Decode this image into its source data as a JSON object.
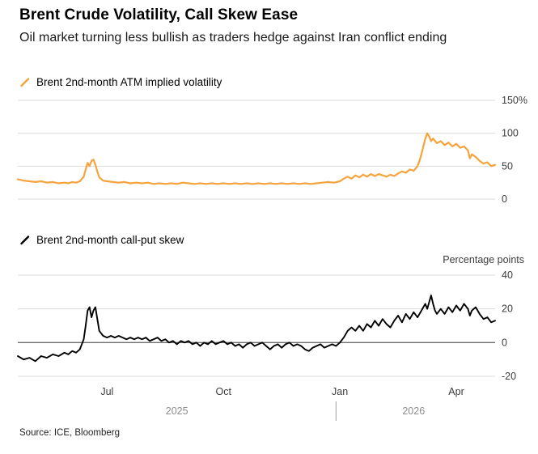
{
  "header": {
    "title": "Brent Crude Volatility, Call Skew Ease",
    "subtitle": "Oil market turning less bullish as traders hedge against Iran conflict ending"
  },
  "colors": {
    "accent": "#F5A33C",
    "ink": "#000000",
    "background": "#FFFFFF",
    "grid": "#DBDBDB",
    "zero_line": "#6E6E6E",
    "divider": "#A0A0A0",
    "tick_text": "#3C3C3C",
    "year_text": "#8C8C8C"
  },
  "x_axis": {
    "unit": "months since 2025-05-01",
    "domain": [
      -0.3,
      12.0
    ],
    "ticks": [
      {
        "label": "Jul",
        "t": 2
      },
      {
        "label": "Oct",
        "t": 5
      },
      {
        "label": "Jan",
        "t": 8
      },
      {
        "label": "Apr",
        "t": 11
      }
    ],
    "years": [
      {
        "label": "2025",
        "t": 3.8
      },
      {
        "label": "2026",
        "t": 9.9
      }
    ],
    "divider_t": 7.9
  },
  "chart_data": [
    {
      "type": "line",
      "name": "Brent 2nd-month ATM implied volatility",
      "color": "#F5A33C",
      "ylim": [
        0,
        150
      ],
      "yticks": [
        0,
        50,
        100,
        150
      ],
      "ytick_labels": [
        "0",
        "50",
        "100",
        "150%"
      ],
      "zero_dark": false,
      "points": [
        [
          -0.3,
          30
        ],
        [
          -0.15,
          28
        ],
        [
          0,
          27
        ],
        [
          0.15,
          26
        ],
        [
          0.3,
          27
        ],
        [
          0.45,
          25
        ],
        [
          0.6,
          26
        ],
        [
          0.75,
          24
        ],
        [
          0.9,
          25
        ],
        [
          1.0,
          24
        ],
        [
          1.1,
          26
        ],
        [
          1.2,
          25
        ],
        [
          1.3,
          27
        ],
        [
          1.4,
          34
        ],
        [
          1.45,
          45
        ],
        [
          1.5,
          55
        ],
        [
          1.55,
          50
        ],
        [
          1.6,
          58
        ],
        [
          1.65,
          60
        ],
        [
          1.7,
          52
        ],
        [
          1.75,
          42
        ],
        [
          1.8,
          33
        ],
        [
          1.9,
          28
        ],
        [
          2.0,
          27
        ],
        [
          2.15,
          26
        ],
        [
          2.3,
          25
        ],
        [
          2.45,
          26
        ],
        [
          2.6,
          24
        ],
        [
          2.75,
          25
        ],
        [
          2.9,
          24
        ],
        [
          3.05,
          25
        ],
        [
          3.2,
          23
        ],
        [
          3.35,
          24
        ],
        [
          3.5,
          23
        ],
        [
          3.65,
          24
        ],
        [
          3.8,
          23
        ],
        [
          3.95,
          25
        ],
        [
          4.1,
          24
        ],
        [
          4.25,
          23
        ],
        [
          4.4,
          24
        ],
        [
          4.55,
          23
        ],
        [
          4.7,
          24
        ],
        [
          4.85,
          23
        ],
        [
          5.0,
          24
        ],
        [
          5.15,
          23
        ],
        [
          5.3,
          24
        ],
        [
          5.45,
          23
        ],
        [
          5.6,
          24
        ],
        [
          5.75,
          23
        ],
        [
          5.9,
          24
        ],
        [
          6.05,
          23
        ],
        [
          6.2,
          24
        ],
        [
          6.35,
          23
        ],
        [
          6.5,
          24
        ],
        [
          6.65,
          23
        ],
        [
          6.8,
          24
        ],
        [
          6.95,
          23
        ],
        [
          7.1,
          24
        ],
        [
          7.25,
          23
        ],
        [
          7.4,
          24
        ],
        [
          7.55,
          25
        ],
        [
          7.7,
          26
        ],
        [
          7.85,
          25
        ],
        [
          8.0,
          27
        ],
        [
          8.1,
          31
        ],
        [
          8.2,
          34
        ],
        [
          8.3,
          31
        ],
        [
          8.4,
          36
        ],
        [
          8.5,
          33
        ],
        [
          8.6,
          37
        ],
        [
          8.7,
          34
        ],
        [
          8.8,
          38
        ],
        [
          8.9,
          35
        ],
        [
          9.0,
          38
        ],
        [
          9.1,
          36
        ],
        [
          9.2,
          34
        ],
        [
          9.3,
          37
        ],
        [
          9.4,
          35
        ],
        [
          9.5,
          39
        ],
        [
          9.6,
          42
        ],
        [
          9.7,
          40
        ],
        [
          9.8,
          45
        ],
        [
          9.9,
          43
        ],
        [
          10.0,
          50
        ],
        [
          10.05,
          58
        ],
        [
          10.1,
          68
        ],
        [
          10.15,
          80
        ],
        [
          10.2,
          92
        ],
        [
          10.25,
          100
        ],
        [
          10.3,
          95
        ],
        [
          10.35,
          88
        ],
        [
          10.4,
          92
        ],
        [
          10.5,
          85
        ],
        [
          10.6,
          88
        ],
        [
          10.7,
          82
        ],
        [
          10.8,
          86
        ],
        [
          10.9,
          80
        ],
        [
          11.0,
          84
        ],
        [
          11.1,
          78
        ],
        [
          11.2,
          80
        ],
        [
          11.3,
          74
        ],
        [
          11.35,
          62
        ],
        [
          11.4,
          68
        ],
        [
          11.5,
          64
        ],
        [
          11.6,
          58
        ],
        [
          11.7,
          54
        ],
        [
          11.8,
          56
        ],
        [
          11.9,
          50
        ],
        [
          12.0,
          52
        ]
      ]
    },
    {
      "type": "line",
      "name": "Brent 2nd-month call-put skew",
      "axis_label": "Percentage points",
      "color": "#000000",
      "ylim": [
        -20,
        40
      ],
      "yticks": [
        -20,
        0,
        20,
        40
      ],
      "ytick_labels": [
        "-20",
        "0",
        "20",
        "40"
      ],
      "zero_dark": true,
      "points": [
        [
          -0.3,
          -8
        ],
        [
          -0.15,
          -10
        ],
        [
          0,
          -9
        ],
        [
          0.15,
          -11
        ],
        [
          0.3,
          -8
        ],
        [
          0.45,
          -9
        ],
        [
          0.6,
          -7
        ],
        [
          0.75,
          -8
        ],
        [
          0.9,
          -6
        ],
        [
          1.0,
          -7
        ],
        [
          1.1,
          -5
        ],
        [
          1.2,
          -6
        ],
        [
          1.3,
          -4
        ],
        [
          1.4,
          2
        ],
        [
          1.45,
          10
        ],
        [
          1.5,
          19
        ],
        [
          1.55,
          21
        ],
        [
          1.6,
          15
        ],
        [
          1.65,
          19
        ],
        [
          1.7,
          21
        ],
        [
          1.75,
          14
        ],
        [
          1.8,
          7
        ],
        [
          1.9,
          4
        ],
        [
          2.0,
          3
        ],
        [
          2.1,
          4
        ],
        [
          2.2,
          3
        ],
        [
          2.3,
          4
        ],
        [
          2.4,
          3
        ],
        [
          2.5,
          2
        ],
        [
          2.6,
          3
        ],
        [
          2.7,
          2
        ],
        [
          2.8,
          3
        ],
        [
          2.9,
          2
        ],
        [
          3.0,
          3
        ],
        [
          3.1,
          1
        ],
        [
          3.2,
          2
        ],
        [
          3.3,
          3
        ],
        [
          3.4,
          1
        ],
        [
          3.5,
          2
        ],
        [
          3.6,
          0
        ],
        [
          3.7,
          1
        ],
        [
          3.8,
          -1
        ],
        [
          3.9,
          1
        ],
        [
          4.0,
          0
        ],
        [
          4.1,
          1
        ],
        [
          4.2,
          -1
        ],
        [
          4.3,
          0
        ],
        [
          4.4,
          -2
        ],
        [
          4.5,
          0
        ],
        [
          4.6,
          -1
        ],
        [
          4.7,
          1
        ],
        [
          4.8,
          -1
        ],
        [
          4.9,
          0
        ],
        [
          5.0,
          1
        ],
        [
          5.1,
          -1
        ],
        [
          5.2,
          0
        ],
        [
          5.3,
          -2
        ],
        [
          5.4,
          -1
        ],
        [
          5.5,
          -3
        ],
        [
          5.6,
          -1
        ],
        [
          5.7,
          0
        ],
        [
          5.8,
          -2
        ],
        [
          5.9,
          -1
        ],
        [
          6.0,
          0
        ],
        [
          6.1,
          -2
        ],
        [
          6.2,
          -4
        ],
        [
          6.3,
          -2
        ],
        [
          6.4,
          -1
        ],
        [
          6.5,
          -3
        ],
        [
          6.6,
          -1
        ],
        [
          6.7,
          0
        ],
        [
          6.8,
          -2
        ],
        [
          6.9,
          -1
        ],
        [
          7.0,
          -2
        ],
        [
          7.1,
          -4
        ],
        [
          7.2,
          -5
        ],
        [
          7.3,
          -3
        ],
        [
          7.4,
          -2
        ],
        [
          7.5,
          -1
        ],
        [
          7.6,
          -3
        ],
        [
          7.7,
          -2
        ],
        [
          7.8,
          -1
        ],
        [
          7.9,
          -2
        ],
        [
          8.0,
          0
        ],
        [
          8.1,
          3
        ],
        [
          8.2,
          7
        ],
        [
          8.3,
          9
        ],
        [
          8.4,
          7
        ],
        [
          8.5,
          10
        ],
        [
          8.6,
          7
        ],
        [
          8.7,
          11
        ],
        [
          8.8,
          9
        ],
        [
          8.9,
          13
        ],
        [
          9.0,
          10
        ],
        [
          9.1,
          14
        ],
        [
          9.2,
          11
        ],
        [
          9.3,
          9
        ],
        [
          9.4,
          13
        ],
        [
          9.5,
          16
        ],
        [
          9.6,
          12
        ],
        [
          9.7,
          17
        ],
        [
          9.8,
          14
        ],
        [
          9.9,
          18
        ],
        [
          10.0,
          15
        ],
        [
          10.1,
          19
        ],
        [
          10.2,
          23
        ],
        [
          10.25,
          20
        ],
        [
          10.3,
          24
        ],
        [
          10.35,
          28
        ],
        [
          10.4,
          23
        ],
        [
          10.45,
          19
        ],
        [
          10.5,
          17
        ],
        [
          10.6,
          20
        ],
        [
          10.7,
          17
        ],
        [
          10.8,
          21
        ],
        [
          10.9,
          18
        ],
        [
          11.0,
          22
        ],
        [
          11.1,
          19
        ],
        [
          11.2,
          23
        ],
        [
          11.3,
          20
        ],
        [
          11.35,
          16
        ],
        [
          11.4,
          19
        ],
        [
          11.5,
          21
        ],
        [
          11.6,
          17
        ],
        [
          11.7,
          14
        ],
        [
          11.8,
          15
        ],
        [
          11.9,
          12
        ],
        [
          12.0,
          13
        ]
      ]
    }
  ],
  "source": "Source: ICE, Bloomberg"
}
